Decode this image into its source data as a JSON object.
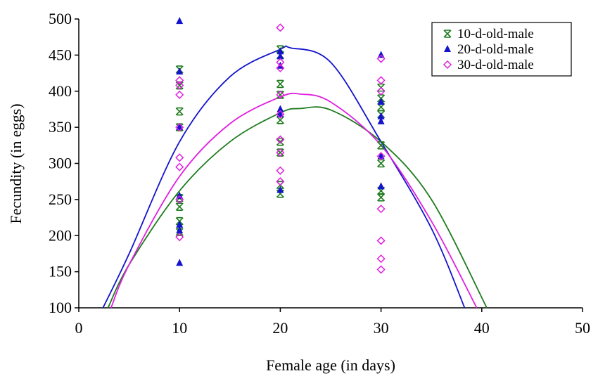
{
  "chart_data": {
    "type": "scatter",
    "title": "",
    "xlabel": "Female age (in days)",
    "ylabel": "Fecundity (in eggs)",
    "xlim": [
      0,
      50
    ],
    "ylim": [
      100,
      500
    ],
    "x_ticks": [
      0,
      10,
      20,
      30,
      40,
      50
    ],
    "y_ticks": [
      100,
      150,
      200,
      250,
      300,
      350,
      400,
      450,
      500
    ],
    "grid": false,
    "legend_position": "top-right",
    "series": [
      {
        "name": "10-d-old-male",
        "marker": "asterisk",
        "color": "#1e7b1e",
        "points": [
          [
            10,
            430
          ],
          [
            10,
            408
          ],
          [
            10,
            372
          ],
          [
            10,
            350
          ],
          [
            10,
            252
          ],
          [
            10,
            240
          ],
          [
            10,
            220
          ],
          [
            10,
            205
          ],
          [
            20,
            458
          ],
          [
            20,
            450
          ],
          [
            20,
            410
          ],
          [
            20,
            395
          ],
          [
            20,
            360
          ],
          [
            20,
            330
          ],
          [
            20,
            315
          ],
          [
            20,
            270
          ],
          [
            20,
            258
          ],
          [
            30,
            405
          ],
          [
            30,
            390
          ],
          [
            30,
            378
          ],
          [
            30,
            368
          ],
          [
            30,
            325
          ],
          [
            30,
            300
          ],
          [
            30,
            262
          ],
          [
            30,
            253
          ]
        ],
        "fit_curve": [
          [
            2.9,
            100
          ],
          [
            5,
            160
          ],
          [
            10,
            262
          ],
          [
            15,
            330
          ],
          [
            20,
            370
          ],
          [
            22,
            376
          ],
          [
            25,
            374
          ],
          [
            30,
            330
          ],
          [
            35,
            250
          ],
          [
            40.5,
            100
          ]
        ]
      },
      {
        "name": "20-d-old-male",
        "marker": "triangle",
        "color": "#1414cc",
        "points": [
          [
            10,
            497
          ],
          [
            10,
            427
          ],
          [
            10,
            350
          ],
          [
            10,
            255
          ],
          [
            10,
            215
          ],
          [
            10,
            207
          ],
          [
            10,
            162
          ],
          [
            20,
            455
          ],
          [
            20,
            448
          ],
          [
            20,
            435
          ],
          [
            20,
            375
          ],
          [
            20,
            368
          ],
          [
            20,
            263
          ],
          [
            30,
            450
          ],
          [
            30,
            385
          ],
          [
            30,
            365
          ],
          [
            30,
            358
          ],
          [
            30,
            310
          ],
          [
            30,
            268
          ]
        ],
        "fit_curve": [
          [
            2.4,
            100
          ],
          [
            5,
            175
          ],
          [
            10,
            330
          ],
          [
            15,
            420
          ],
          [
            20,
            458
          ],
          [
            21,
            460
          ],
          [
            25,
            440
          ],
          [
            30,
            330
          ],
          [
            35,
            210
          ],
          [
            38.3,
            100
          ]
        ]
      },
      {
        "name": "30-d-old-male",
        "marker": "diamond",
        "color": "#e020e0",
        "points": [
          [
            10,
            415
          ],
          [
            10,
            408
          ],
          [
            10,
            395
          ],
          [
            10,
            350
          ],
          [
            10,
            308
          ],
          [
            10,
            295
          ],
          [
            10,
            250
          ],
          [
            10,
            198
          ],
          [
            20,
            488
          ],
          [
            20,
            440
          ],
          [
            20,
            432
          ],
          [
            20,
            395
          ],
          [
            20,
            368
          ],
          [
            20,
            333
          ],
          [
            20,
            315
          ],
          [
            20,
            290
          ],
          [
            20,
            275
          ],
          [
            30,
            445
          ],
          [
            30,
            415
          ],
          [
            30,
            400
          ],
          [
            30,
            310
          ],
          [
            30,
            237
          ],
          [
            30,
            193
          ],
          [
            30,
            168
          ],
          [
            30,
            153
          ]
        ],
        "fit_curve": [
          [
            3.2,
            100
          ],
          [
            5,
            160
          ],
          [
            10,
            282
          ],
          [
            15,
            355
          ],
          [
            20,
            392
          ],
          [
            22,
            396
          ],
          [
            25,
            385
          ],
          [
            30,
            325
          ],
          [
            35,
            220
          ],
          [
            39.5,
            100
          ]
        ]
      }
    ]
  }
}
